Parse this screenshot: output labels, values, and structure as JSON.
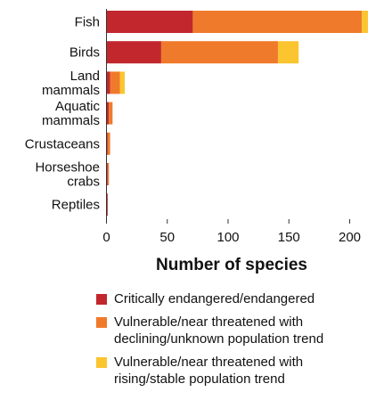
{
  "chart_data": {
    "type": "bar",
    "orientation": "horizontal",
    "stacked": true,
    "categories": [
      [
        "Fish"
      ],
      [
        "Birds"
      ],
      [
        "Land",
        "mammals"
      ],
      [
        "Aquatic",
        "mammals"
      ],
      [
        "Crustaceans"
      ],
      [
        "Horseshoe",
        "crabs"
      ],
      [
        "Reptiles"
      ]
    ],
    "series": [
      {
        "name": "Critically endangered/endangered",
        "color": "#c1272d",
        "values": [
          71,
          45,
          3,
          2,
          1,
          1,
          1
        ]
      },
      {
        "name": "Vulnerable/near threatened with declining/unknown population trend",
        "color": "#f07a2b",
        "values": [
          139,
          96,
          8,
          3,
          2,
          1,
          0
        ]
      },
      {
        "name": "Vulnerable/near threatened with rising/stable population trend",
        "color": "#fbc530",
        "values": [
          5,
          17,
          4,
          0,
          0,
          0,
          0
        ]
      }
    ],
    "xlabel": "Number of species",
    "ylabel": "",
    "xlim": [
      0,
      215
    ],
    "xticks": [
      0,
      50,
      100,
      150,
      200
    ],
    "grid": false,
    "legend_position": "bottom"
  },
  "legend": [
    {
      "color": "#c1272d",
      "lines": [
        "Critically endangered/endangered"
      ]
    },
    {
      "color": "#f07a2b",
      "lines": [
        "Vulnerable/near threatened with",
        "declining/unknown population trend"
      ]
    },
    {
      "color": "#fbc530",
      "lines": [
        "Vulnerable/near threatened with",
        "rising/stable population trend"
      ]
    }
  ]
}
